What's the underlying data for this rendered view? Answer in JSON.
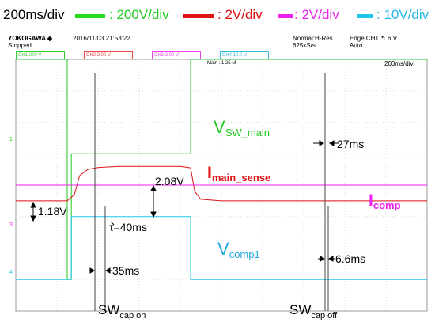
{
  "legend": {
    "timebase": "200ms/div",
    "items": [
      {
        "label": ": 200V/div",
        "color": "#22dd22"
      },
      {
        "label": ": 2V/div",
        "color": "#dd1111"
      },
      {
        "label": ": 2V/div",
        "color": "#ee22ee"
      },
      {
        "label": ": 10V/div",
        "color": "#22c8e8"
      }
    ]
  },
  "header": {
    "brand": "YOKOGAWA ◆",
    "timestamp": "2016/11/03 21:53:22",
    "status": "Stopped",
    "mode": "Normal:H-Res",
    "sample_rate": "625kS/s",
    "trigger": "Edge CH1 ↰ 6 V",
    "trigger_mode": "Auto",
    "main_info": "Main : 1.25 M",
    "screen_timebase": "200ms/div",
    "channels": [
      {
        "label": "CH1 200 V",
        "color": "#33cc33"
      },
      {
        "label": "CH2 2.00 V",
        "color": "#ee4444"
      },
      {
        "label": "CH3 2.00 V",
        "color": "#ee44ee"
      },
      {
        "label": "CH4 10.0 V",
        "color": "#33bbdd"
      }
    ]
  },
  "chart_data": {
    "type": "line",
    "x_unit": "ms",
    "xlim": [
      0,
      2000
    ],
    "series": [
      {
        "name": "V_SW_main",
        "color": "#22cc22",
        "points": [
          [
            0,
            4.0
          ],
          [
            250,
            4.0
          ],
          [
            250,
            -3.0
          ],
          [
            270,
            -3.0
          ],
          [
            270,
            1.0
          ],
          [
            850,
            1.0
          ],
          [
            850,
            4.0
          ],
          [
            2000,
            4.0
          ]
        ]
      },
      {
        "name": "I_main_sense",
        "color": "#dd1111",
        "points": [
          [
            0,
            -0.5
          ],
          [
            250,
            -0.5
          ],
          [
            285,
            -0.3
          ],
          [
            310,
            0.3
          ],
          [
            350,
            0.5
          ],
          [
            400,
            0.56
          ],
          [
            500,
            0.6
          ],
          [
            800,
            0.6
          ],
          [
            850,
            0.55
          ],
          [
            870,
            -0.2
          ],
          [
            900,
            -0.45
          ],
          [
            1000,
            -0.5
          ],
          [
            2000,
            -0.5
          ]
        ]
      },
      {
        "name": "I_comp",
        "color": "#ee22ee",
        "points": [
          [
            0,
            0
          ],
          [
            2000,
            0
          ]
        ]
      },
      {
        "name": "V_comp1",
        "color": "#22c8e8",
        "points": [
          [
            0,
            -3.0
          ],
          [
            270,
            -3.0
          ],
          [
            270,
            -1.0
          ],
          [
            850,
            -1.0
          ],
          [
            850,
            -3.0
          ],
          [
            2000,
            -3.0
          ]
        ]
      }
    ],
    "annotations": {
      "v_sw_main": {
        "main": "V",
        "sub": "SW_main"
      },
      "i_main_sense": {
        "main": "I",
        "sub": "main_sense"
      },
      "i_comp": {
        "main": "I",
        "sub": "comp"
      },
      "v_comp1": {
        "main": "V",
        "sub": "comp1"
      },
      "sw_on": {
        "main": "SW",
        "sub": "cap on"
      },
      "sw_off": {
        "main": "SW",
        "sub": "cap off"
      },
      "delay_off": "27ms",
      "step": "2.08V",
      "offset": "1.18V",
      "tau": "τ=40ms",
      "delay_on": "35ms",
      "delay_comp": "6.6ms"
    }
  }
}
